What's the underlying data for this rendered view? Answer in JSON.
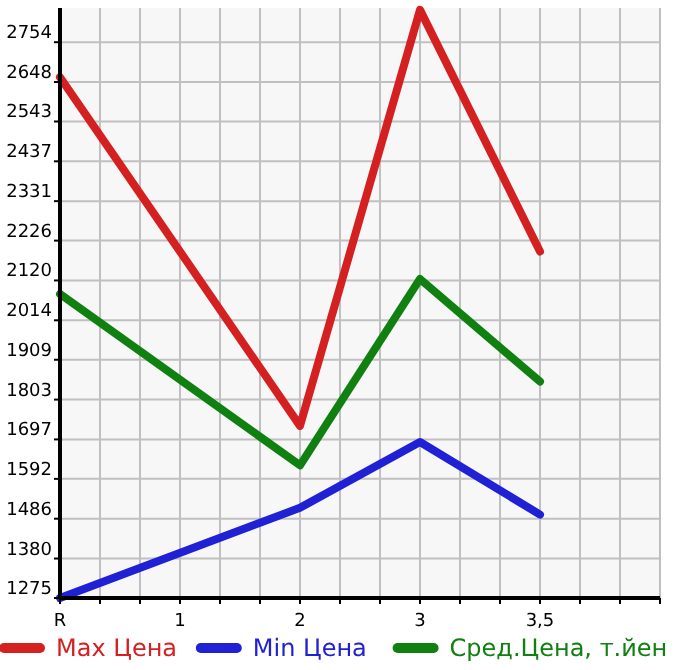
{
  "chart_data": {
    "type": "line",
    "categories": [
      "R",
      "1",
      "2",
      "3",
      "3,5",
      null
    ],
    "series": [
      {
        "name": "Max Цена",
        "color": "#d42020",
        "values": [
          2661,
          null,
          1733,
          2840,
          2197,
          null
        ]
      },
      {
        "name": "Min Цена",
        "color": "#2020d4",
        "values": [
          1275,
          null,
          1515,
          1690,
          1497,
          null
        ]
      },
      {
        "name": "Сред.Цена, т.йен",
        "color": "#108010",
        "values": [
          2084,
          null,
          1628,
          2124,
          1851,
          null
        ]
      }
    ],
    "ylim": [
      1275,
      2845
    ],
    "yticks": [
      1275,
      1380,
      1486,
      1592,
      1697,
      1803,
      1909,
      2014,
      2120,
      2226,
      2331,
      2437,
      2543,
      2648,
      2754
    ],
    "grid": true,
    "legend": "bottom",
    "marker": "none",
    "line_style": "solid"
  }
}
